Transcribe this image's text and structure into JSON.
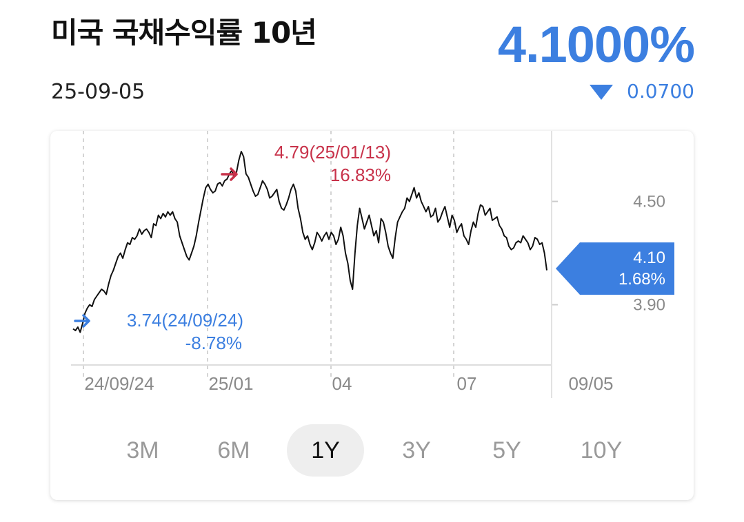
{
  "header": {
    "title": "미국 국채수익률 10년",
    "date": "25-09-05",
    "price": "4.1000%",
    "change_value": "0.0700",
    "change_direction": "down",
    "change_icon": "triangle-down-icon"
  },
  "colors": {
    "accent_blue": "#3c7fe0",
    "high_red": "#c8324a",
    "low_blue": "#3c7fe0",
    "line": "#111111"
  },
  "chart_data": {
    "type": "line",
    "x_tick_labels": [
      "24/09/24",
      "25/01",
      "04",
      "07",
      "09/05"
    ],
    "y_tick_labels": [
      "4.50",
      "3.90"
    ],
    "ylim": [
      3.55,
      4.85
    ],
    "high": {
      "value_label": "4.79(25/01/13)",
      "pct_label": "16.83%",
      "value": 4.79
    },
    "low": {
      "value_label": "3.74(24/09/24)",
      "pct_label": "-8.78%",
      "value": 3.74
    },
    "current": {
      "value_label": "4.10",
      "pct_label": "1.68%",
      "value": 4.1
    },
    "series": [
      {
        "values": [
          3.76,
          3.75,
          3.77,
          3.74,
          3.79,
          3.85,
          3.88,
          3.9,
          3.89,
          3.93,
          3.95,
          3.97,
          3.99,
          3.98,
          3.96,
          4.02,
          4.07,
          4.1,
          4.14,
          4.18,
          4.2,
          4.17,
          4.22,
          4.26,
          4.25,
          4.29,
          4.28,
          4.3,
          4.34,
          4.31,
          4.33,
          4.34,
          4.32,
          4.29,
          4.37,
          4.36,
          4.42,
          4.4,
          4.43,
          4.41,
          4.44,
          4.42,
          4.44,
          4.4,
          4.38,
          4.3,
          4.26,
          4.22,
          4.18,
          4.16,
          4.2,
          4.24,
          4.3,
          4.38,
          4.45,
          4.52,
          4.58,
          4.6,
          4.57,
          4.55,
          4.56,
          4.6,
          4.61,
          4.59,
          4.62,
          4.63,
          4.66,
          4.68,
          4.64,
          4.67,
          4.74,
          4.79,
          4.76,
          4.66,
          4.64,
          4.6,
          4.56,
          4.53,
          4.54,
          4.58,
          4.62,
          4.6,
          4.57,
          4.52,
          4.53,
          4.55,
          4.57,
          4.5,
          4.46,
          4.45,
          4.48,
          4.52,
          4.57,
          4.6,
          4.56,
          4.46,
          4.4,
          4.32,
          4.28,
          4.3,
          4.25,
          4.22,
          4.26,
          4.32,
          4.3,
          4.27,
          4.3,
          4.32,
          4.28,
          4.32,
          4.3,
          4.25,
          4.28,
          4.35,
          4.3,
          4.2,
          4.14,
          4.04,
          3.99,
          4.2,
          4.36,
          4.46,
          4.4,
          4.34,
          4.38,
          4.42,
          4.36,
          4.3,
          4.33,
          4.26,
          4.4,
          4.38,
          4.32,
          4.24,
          4.2,
          4.17,
          4.29,
          4.38,
          4.41,
          4.44,
          4.46,
          4.52,
          4.5,
          4.54,
          4.58,
          4.52,
          4.55,
          4.5,
          4.47,
          4.44,
          4.47,
          4.41,
          4.42,
          4.46,
          4.38,
          4.4,
          4.44,
          4.47,
          4.41,
          4.35,
          4.42,
          4.39,
          4.32,
          4.35,
          4.37,
          4.3,
          4.28,
          4.25,
          4.33,
          4.38,
          4.35,
          4.43,
          4.48,
          4.47,
          4.42,
          4.44,
          4.46,
          4.39,
          4.4,
          4.41,
          4.36,
          4.34,
          4.3,
          4.29,
          4.24,
          4.22,
          4.23,
          4.26,
          4.27,
          4.26,
          4.3,
          4.28,
          4.26,
          4.22,
          4.24,
          4.29,
          4.28,
          4.25,
          4.26,
          4.2,
          4.1
        ]
      }
    ]
  },
  "periods": {
    "options": [
      "3M",
      "6M",
      "1Y",
      "3Y",
      "5Y",
      "10Y"
    ],
    "selected": "1Y"
  }
}
